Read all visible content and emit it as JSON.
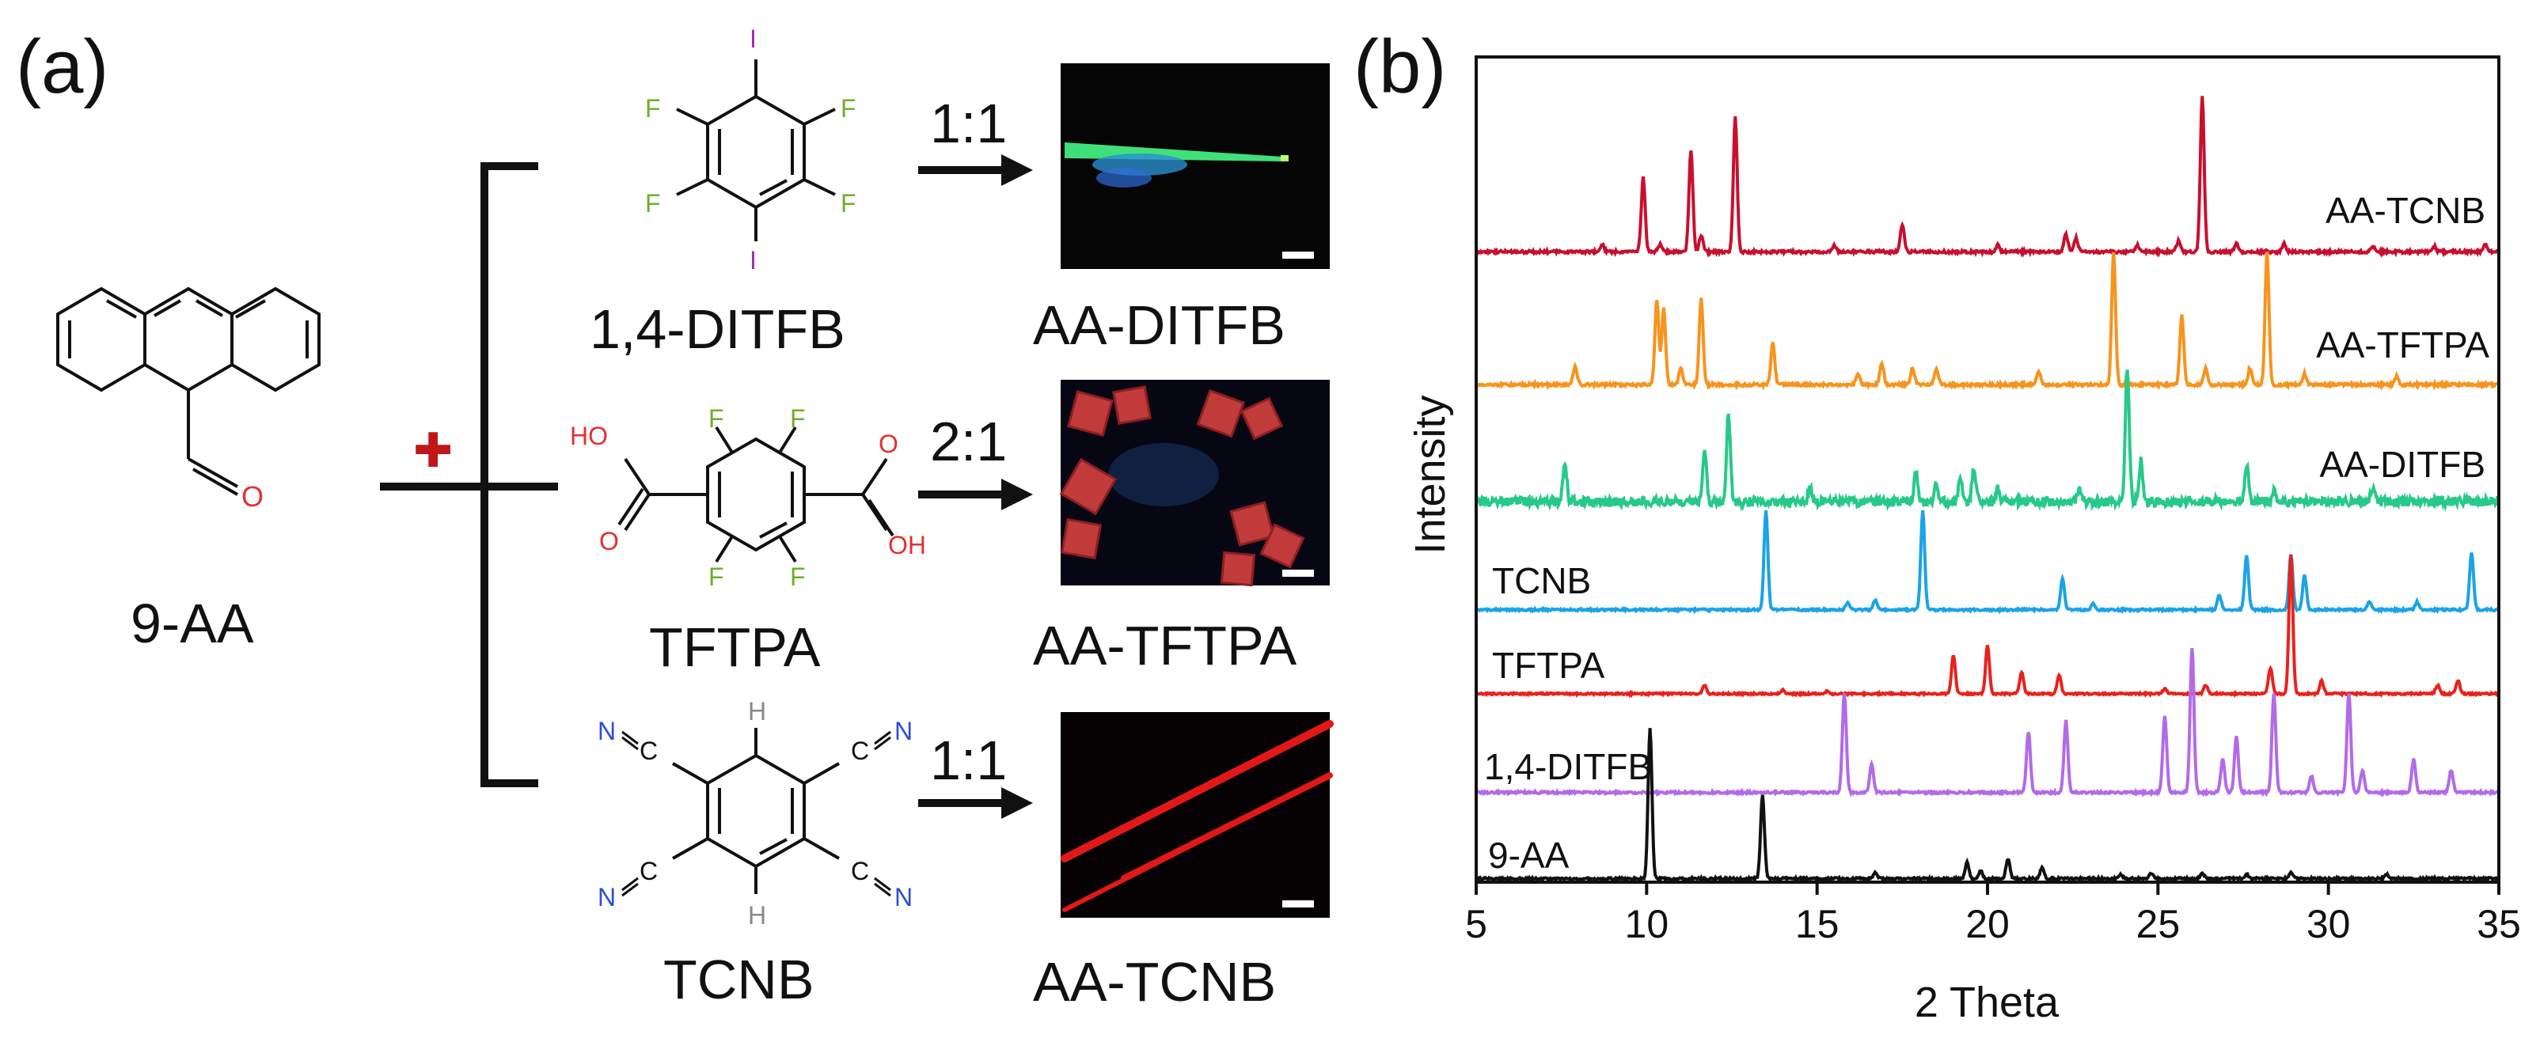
{
  "panel_a": {
    "label": "(a)",
    "reactant": {
      "name": "9-AA",
      "oxygen": "O"
    },
    "plus_symbol": "✚",
    "coformers": [
      {
        "name": "1,4-DITFB",
        "ratio": "1:1",
        "product": "AA-DITFB",
        "atoms": {
          "top": "I",
          "bottom": "I",
          "tl": "F",
          "tr": "F",
          "bl": "F",
          "br": "F"
        }
      },
      {
        "name": "TFTPA",
        "ratio": "2:1",
        "product": "AA-TFTPA",
        "atoms": {
          "f": "F",
          "ho": "HO",
          "oh": "OH",
          "o": "O"
        }
      },
      {
        "name": "TCNB",
        "ratio": "1:1",
        "product": "AA-TCNB",
        "atoms": {
          "h": "H",
          "n": "N",
          "c": "C"
        }
      }
    ],
    "colors": {
      "iodine": "#9b2fb0",
      "fluorine": "#6fae2e",
      "oxygen": "#e23030",
      "nitrogen": "#2a4fd6",
      "hydrogen": "#888888",
      "plus": "#c0161a"
    }
  },
  "panel_b": {
    "label": "(b)"
  },
  "chart_data": {
    "type": "line",
    "title": "",
    "xlabel": "2 Theta",
    "ylabel": "Intensity",
    "xlim": [
      5,
      35
    ],
    "xticks": [
      5,
      10,
      15,
      20,
      25,
      30,
      35
    ],
    "yticks_shown": false,
    "grid": false,
    "legend": "labels placed next to each trace",
    "series": [
      {
        "name": "AA-TCNB",
        "color": "#c8102e",
        "peaks": [
          [
            8.7,
            0.05
          ],
          [
            9.9,
            0.55
          ],
          [
            10.4,
            0.06
          ],
          [
            11.3,
            0.75
          ],
          [
            11.6,
            0.12
          ],
          [
            12.6,
            1.0
          ],
          [
            15.5,
            0.05
          ],
          [
            17.5,
            0.2
          ],
          [
            20.3,
            0.05
          ],
          [
            22.3,
            0.13
          ],
          [
            22.6,
            0.1
          ],
          [
            24.4,
            0.05
          ],
          [
            25.6,
            0.08
          ],
          [
            26.3,
            1.15
          ],
          [
            27.3,
            0.06
          ],
          [
            28.7,
            0.06
          ],
          [
            31.3,
            0.04
          ],
          [
            33.1,
            0.04
          ],
          [
            34.6,
            0.05
          ]
        ]
      },
      {
        "name": "AA-TFTPA",
        "color": "#f7941d",
        "peaks": [
          [
            7.9,
            0.13
          ],
          [
            10.3,
            0.62
          ],
          [
            10.5,
            0.55
          ],
          [
            11.0,
            0.12
          ],
          [
            11.6,
            0.62
          ],
          [
            13.7,
            0.3
          ],
          [
            16.2,
            0.08
          ],
          [
            16.9,
            0.15
          ],
          [
            17.8,
            0.12
          ],
          [
            18.5,
            0.12
          ],
          [
            21.5,
            0.1
          ],
          [
            23.7,
            0.95
          ],
          [
            25.7,
            0.5
          ],
          [
            26.4,
            0.12
          ],
          [
            27.7,
            0.12
          ],
          [
            28.2,
            0.95
          ],
          [
            29.3,
            0.08
          ],
          [
            32.0,
            0.06
          ]
        ]
      },
      {
        "name": "AA-DITFB",
        "color": "#27c98a",
        "noise": true,
        "peaks": [
          [
            7.6,
            0.3
          ],
          [
            11.7,
            0.4
          ],
          [
            12.4,
            0.65
          ],
          [
            14.8,
            0.1
          ],
          [
            17.9,
            0.22
          ],
          [
            18.5,
            0.15
          ],
          [
            19.2,
            0.18
          ],
          [
            19.6,
            0.25
          ],
          [
            20.3,
            0.1
          ],
          [
            22.7,
            0.1
          ],
          [
            24.1,
            1.0
          ],
          [
            24.5,
            0.3
          ],
          [
            27.6,
            0.28
          ],
          [
            28.4,
            0.1
          ],
          [
            31.3,
            0.1
          ]
        ]
      },
      {
        "name": "TCNB",
        "color": "#1ba3e8",
        "peaks": [
          [
            13.5,
            1.0
          ],
          [
            15.9,
            0.08
          ],
          [
            16.7,
            0.1
          ],
          [
            18.1,
            1.0
          ],
          [
            22.2,
            0.32
          ],
          [
            23.1,
            0.06
          ],
          [
            26.8,
            0.15
          ],
          [
            27.6,
            0.55
          ],
          [
            28.9,
            0.55
          ],
          [
            29.3,
            0.35
          ],
          [
            31.2,
            0.08
          ],
          [
            32.6,
            0.08
          ],
          [
            34.2,
            0.58
          ]
        ]
      },
      {
        "name": "TFTPA",
        "color": "#e8221c",
        "peaks": [
          [
            11.7,
            0.1
          ],
          [
            14.0,
            0.04
          ],
          [
            15.3,
            0.03
          ],
          [
            19.0,
            0.45
          ],
          [
            20.0,
            0.55
          ],
          [
            21.0,
            0.25
          ],
          [
            22.1,
            0.22
          ],
          [
            25.2,
            0.06
          ],
          [
            26.4,
            0.1
          ],
          [
            28.3,
            0.3
          ],
          [
            28.9,
            1.6
          ],
          [
            29.8,
            0.15
          ],
          [
            33.2,
            0.1
          ],
          [
            33.8,
            0.15
          ]
        ]
      },
      {
        "name": "1,4-DITFB",
        "color": "#b36ae8",
        "peaks": [
          [
            15.8,
            0.9
          ],
          [
            16.6,
            0.25
          ],
          [
            21.2,
            0.55
          ],
          [
            22.3,
            0.65
          ],
          [
            25.2,
            0.7
          ],
          [
            26.0,
            1.3
          ],
          [
            26.9,
            0.3
          ],
          [
            27.3,
            0.5
          ],
          [
            28.4,
            0.9
          ],
          [
            29.5,
            0.15
          ],
          [
            30.6,
            0.9
          ],
          [
            31.0,
            0.2
          ],
          [
            32.5,
            0.3
          ],
          [
            33.6,
            0.2
          ]
        ]
      },
      {
        "name": "9-AA",
        "color": "#111111",
        "peaks": [
          [
            10.1,
            1.35
          ],
          [
            13.4,
            0.75
          ],
          [
            16.7,
            0.05
          ],
          [
            19.4,
            0.15
          ],
          [
            19.8,
            0.07
          ],
          [
            20.6,
            0.18
          ],
          [
            21.6,
            0.1
          ],
          [
            23.9,
            0.04
          ],
          [
            24.8,
            0.05
          ],
          [
            26.3,
            0.05
          ],
          [
            27.6,
            0.04
          ],
          [
            28.9,
            0.06
          ],
          [
            31.7,
            0.04
          ]
        ]
      }
    ]
  }
}
